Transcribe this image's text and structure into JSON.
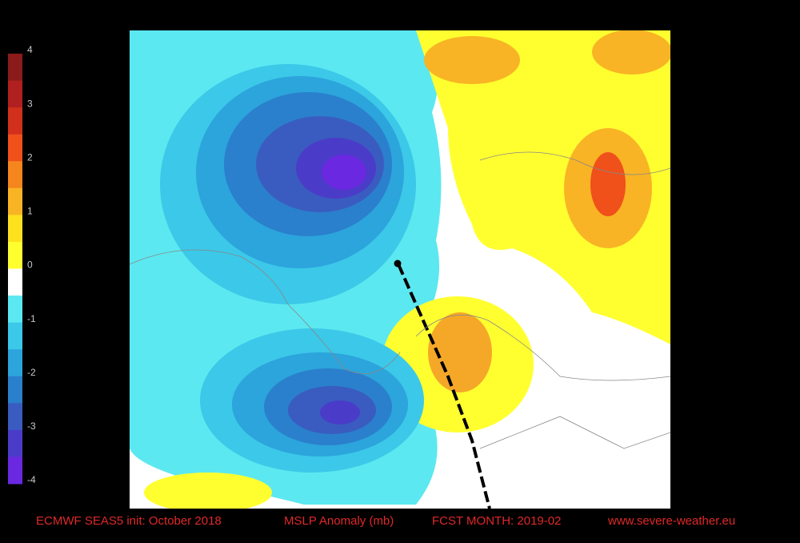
{
  "legend": {
    "ticks": [
      4,
      3,
      2,
      1,
      0,
      -1,
      -2,
      -3,
      -4
    ],
    "colors": [
      "#8b1a1a",
      "#b02020",
      "#d0301c",
      "#f0501a",
      "#f5861e",
      "#f8b424",
      "#fde11e",
      "#ffff30",
      "#ffffff",
      "#5ce8f0",
      "#3cc8e8",
      "#2ca4dc",
      "#2a80cc",
      "#3a5cc0",
      "#4a3cc8",
      "#6a28e0"
    ]
  },
  "footer": {
    "source": "ECMWF SEAS5  init: October 2018",
    "variable": "MSLP Anomaly (mb)",
    "forecast": "FCST MONTH: 2019-02",
    "website": "www.severe-weather.eu"
  }
}
